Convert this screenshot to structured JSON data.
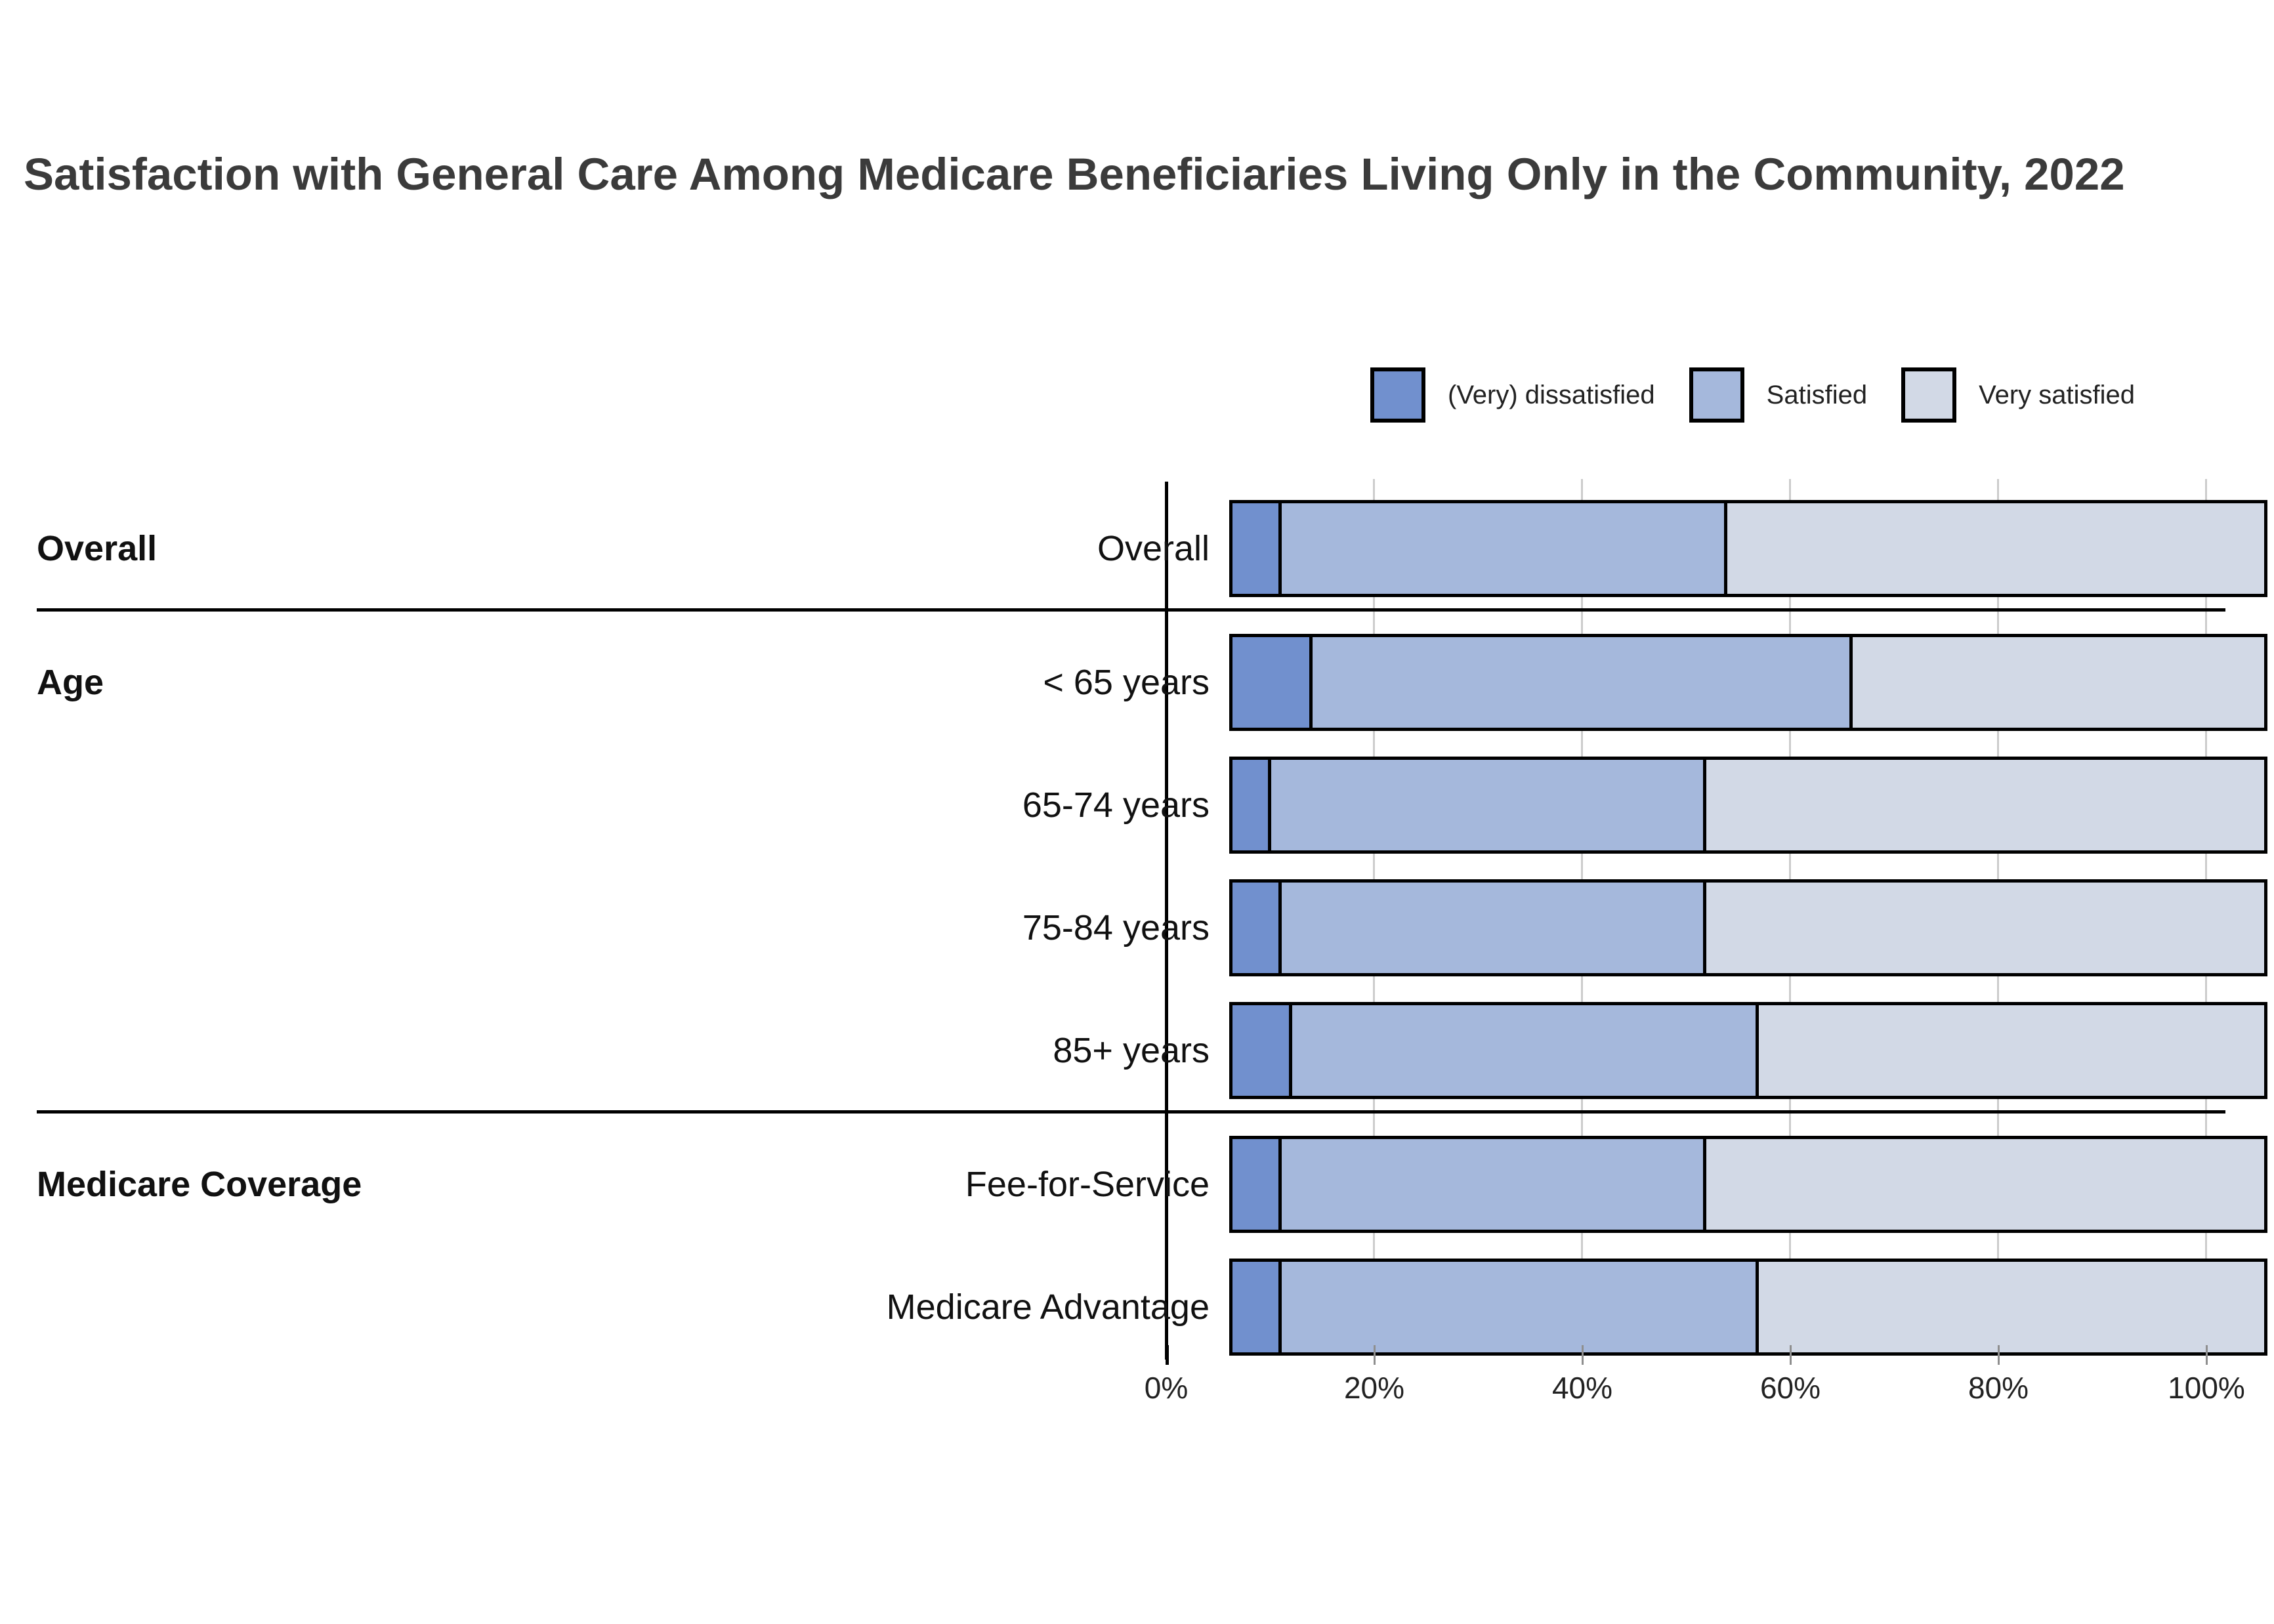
{
  "title": "Satisfaction with General Care Among Medicare Beneficiaries Living Only in the Community, 2022",
  "legend": [
    {
      "label": "(Very) dissatisfied",
      "color": "#7190ce"
    },
    {
      "label": "Satisfied",
      "color": "#a5b8dc"
    },
    {
      "label": "Very satisfied",
      "color": "#d2d9e6"
    }
  ],
  "chart_data": {
    "type": "bar",
    "orientation": "horizontal",
    "stacked": true,
    "title": "Satisfaction with General Care Among Medicare Beneficiaries Living Only in the Community, 2022",
    "unit": "percent",
    "series_names": [
      "(Very) dissatisfied",
      "Satisfied",
      "Very satisfied"
    ],
    "x_axis": {
      "range": [
        0,
        100
      ],
      "ticks": [
        "0%",
        "20%",
        "40%",
        "60%",
        "80%",
        "100%"
      ],
      "grid": true
    },
    "groups": [
      {
        "label": "Overall",
        "rows": [
          {
            "label": "Overall",
            "values": [
              5,
              43,
              52
            ]
          }
        ]
      },
      {
        "label": "Age",
        "rows": [
          {
            "label": "< 65 years",
            "values": [
              8,
              52,
              40
            ]
          },
          {
            "label": "65-74 years",
            "values": [
              4,
              42,
              54
            ]
          },
          {
            "label": "75-84 years",
            "values": [
              5,
              41,
              54
            ]
          },
          {
            "label": "85+ years",
            "values": [
              6,
              45,
              49
            ]
          }
        ]
      },
      {
        "label": "Medicare Coverage",
        "rows": [
          {
            "label": "Fee-for-Service",
            "values": [
              5,
              41,
              54
            ]
          },
          {
            "label": "Medicare Advantage",
            "values": [
              5,
              46,
              49
            ]
          }
        ]
      }
    ]
  }
}
